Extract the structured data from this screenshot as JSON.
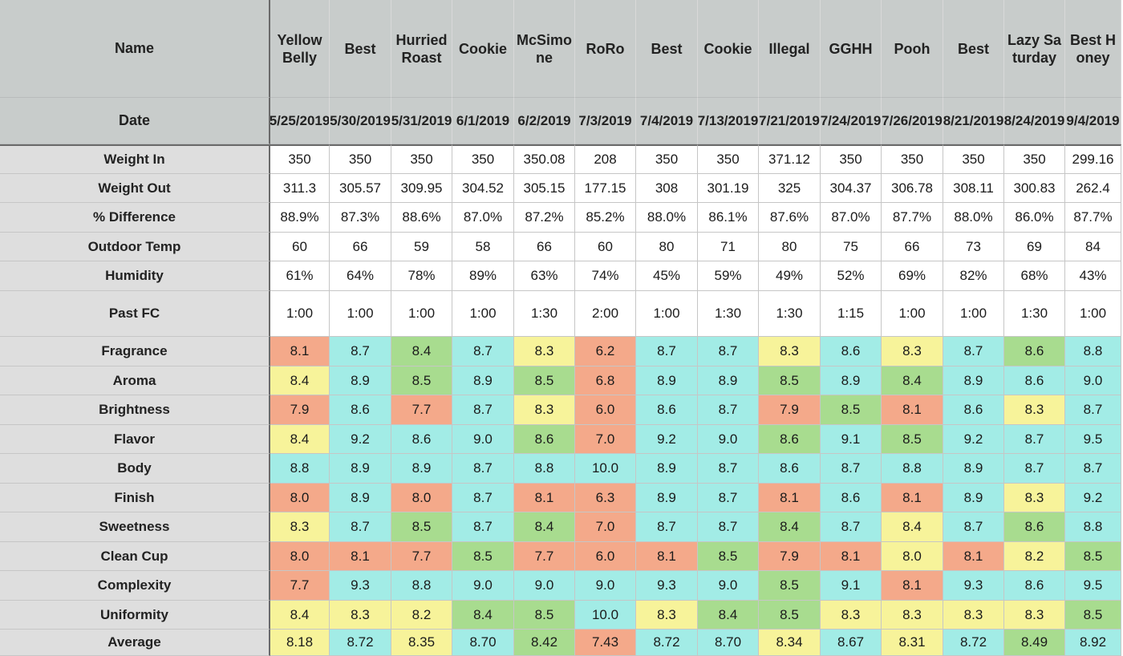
{
  "header": {
    "name_label": "Name",
    "date_label": "Date"
  },
  "columns": [
    {
      "name": "Yellow Belly",
      "date": "5/25/2019"
    },
    {
      "name": "Best",
      "date": "5/30/2019"
    },
    {
      "name": "Hurried Roast",
      "date": "5/31/2019"
    },
    {
      "name": "Cookie",
      "date": "6/1/2019"
    },
    {
      "name": "McSimone",
      "date": "6/2/2019"
    },
    {
      "name": "RoRo",
      "date": "7/3/2019"
    },
    {
      "name": "Best",
      "date": "7/4/2019"
    },
    {
      "name": "Cookie",
      "date": "7/13/2019"
    },
    {
      "name": "Illegal",
      "date": "7/21/2019"
    },
    {
      "name": "GGHH",
      "date": "7/24/2019"
    },
    {
      "name": "Pooh",
      "date": "7/26/2019"
    },
    {
      "name": "Best",
      "date": "8/21/2019"
    },
    {
      "name": "Lazy Saturday",
      "date": "8/24/2019"
    },
    {
      "name": "Best Honey",
      "date": "9/4/2019"
    }
  ],
  "rows": [
    {
      "label": "Weight In",
      "values": [
        "350",
        "350",
        "350",
        "350",
        "350.08",
        "208",
        "350",
        "350",
        "371.12",
        "350",
        "350",
        "350",
        "350",
        "299.16"
      ]
    },
    {
      "label": "Weight Out",
      "values": [
        "311.3",
        "305.57",
        "309.95",
        "304.52",
        "305.15",
        "177.15",
        "308",
        "301.19",
        "325",
        "304.37",
        "306.78",
        "308.11",
        "300.83",
        "262.4"
      ]
    },
    {
      "label": "% Difference",
      "values": [
        "88.9%",
        "87.3%",
        "88.6%",
        "87.0%",
        "87.2%",
        "85.2%",
        "88.0%",
        "86.1%",
        "87.6%",
        "87.0%",
        "87.7%",
        "88.0%",
        "86.0%",
        "87.7%"
      ]
    },
    {
      "label": "Outdoor Temp",
      "values": [
        "60",
        "66",
        "59",
        "58",
        "66",
        "60",
        "80",
        "71",
        "80",
        "75",
        "66",
        "73",
        "69",
        "84"
      ]
    },
    {
      "label": "Humidity",
      "values": [
        "61%",
        "64%",
        "78%",
        "89%",
        "63%",
        "74%",
        "45%",
        "59%",
        "49%",
        "52%",
        "69%",
        "82%",
        "68%",
        "43%"
      ]
    },
    {
      "label": "Past FC",
      "values": [
        "1:00",
        "1:00",
        "1:00",
        "1:00",
        "1:30",
        "2:00",
        "1:00",
        "1:30",
        "1:30",
        "1:15",
        "1:00",
        "1:00",
        "1:30",
        "1:00"
      ]
    },
    {
      "label": "Fragrance",
      "values": [
        "8.1",
        "8.7",
        "8.4",
        "8.7",
        "8.3",
        "6.2",
        "8.7",
        "8.7",
        "8.3",
        "8.6",
        "8.3",
        "8.7",
        "8.6",
        "8.8"
      ],
      "colors": [
        "red",
        "cyn",
        "grn",
        "cyn",
        "yel",
        "red",
        "cyn",
        "cyn",
        "yel",
        "cyn",
        "yel",
        "cyn",
        "grn",
        "cyn"
      ]
    },
    {
      "label": "Aroma",
      "values": [
        "8.4",
        "8.9",
        "8.5",
        "8.9",
        "8.5",
        "6.8",
        "8.9",
        "8.9",
        "8.5",
        "8.9",
        "8.4",
        "8.9",
        "8.6",
        "9.0"
      ],
      "colors": [
        "yel",
        "cyn",
        "grn",
        "cyn",
        "grn",
        "red",
        "cyn",
        "cyn",
        "grn",
        "cyn",
        "grn",
        "cyn",
        "cyn",
        "cyn"
      ]
    },
    {
      "label": "Brightness",
      "values": [
        "7.9",
        "8.6",
        "7.7",
        "8.7",
        "8.3",
        "6.0",
        "8.6",
        "8.7",
        "7.9",
        "8.5",
        "8.1",
        "8.6",
        "8.3",
        "8.7"
      ],
      "colors": [
        "red",
        "cyn",
        "red",
        "cyn",
        "yel",
        "red",
        "cyn",
        "cyn",
        "red",
        "grn",
        "red",
        "cyn",
        "yel",
        "cyn"
      ]
    },
    {
      "label": "Flavor",
      "values": [
        "8.4",
        "9.2",
        "8.6",
        "9.0",
        "8.6",
        "7.0",
        "9.2",
        "9.0",
        "8.6",
        "9.1",
        "8.5",
        "9.2",
        "8.7",
        "9.5"
      ],
      "colors": [
        "yel",
        "cyn",
        "cyn",
        "cyn",
        "grn",
        "red",
        "cyn",
        "cyn",
        "grn",
        "cyn",
        "grn",
        "cyn",
        "cyn",
        "cyn"
      ]
    },
    {
      "label": "Body",
      "values": [
        "8.8",
        "8.9",
        "8.9",
        "8.7",
        "8.8",
        "10.0",
        "8.9",
        "8.7",
        "8.6",
        "8.7",
        "8.8",
        "8.9",
        "8.7",
        "8.7"
      ],
      "colors": [
        "cyn",
        "cyn",
        "cyn",
        "cyn",
        "cyn",
        "cyn",
        "cyn",
        "cyn",
        "cyn",
        "cyn",
        "cyn",
        "cyn",
        "cyn",
        "cyn"
      ]
    },
    {
      "label": "Finish",
      "values": [
        "8.0",
        "8.9",
        "8.0",
        "8.7",
        "8.1",
        "6.3",
        "8.9",
        "8.7",
        "8.1",
        "8.6",
        "8.1",
        "8.9",
        "8.3",
        "9.2"
      ],
      "colors": [
        "red",
        "cyn",
        "red",
        "cyn",
        "red",
        "red",
        "cyn",
        "cyn",
        "red",
        "cyn",
        "red",
        "cyn",
        "yel",
        "cyn"
      ]
    },
    {
      "label": "Sweetness",
      "values": [
        "8.3",
        "8.7",
        "8.5",
        "8.7",
        "8.4",
        "7.0",
        "8.7",
        "8.7",
        "8.4",
        "8.7",
        "8.4",
        "8.7",
        "8.6",
        "8.8"
      ],
      "colors": [
        "yel",
        "cyn",
        "grn",
        "cyn",
        "grn",
        "red",
        "cyn",
        "cyn",
        "grn",
        "cyn",
        "yel",
        "cyn",
        "grn",
        "cyn"
      ]
    },
    {
      "label": "Clean Cup",
      "values": [
        "8.0",
        "8.1",
        "7.7",
        "8.5",
        "7.7",
        "6.0",
        "8.1",
        "8.5",
        "7.9",
        "8.1",
        "8.0",
        "8.1",
        "8.2",
        "8.5"
      ],
      "colors": [
        "red",
        "red",
        "red",
        "grn",
        "red",
        "red",
        "red",
        "grn",
        "red",
        "red",
        "yel",
        "red",
        "yel",
        "grn"
      ]
    },
    {
      "label": "Complexity",
      "values": [
        "7.7",
        "9.3",
        "8.8",
        "9.0",
        "9.0",
        "9.0",
        "9.3",
        "9.0",
        "8.5",
        "9.1",
        "8.1",
        "9.3",
        "8.6",
        "9.5"
      ],
      "colors": [
        "red",
        "cyn",
        "cyn",
        "cyn",
        "cyn",
        "cyn",
        "cyn",
        "cyn",
        "grn",
        "cyn",
        "red",
        "cyn",
        "cyn",
        "cyn"
      ]
    },
    {
      "label": "Uniformity",
      "values": [
        "8.4",
        "8.3",
        "8.2",
        "8.4",
        "8.5",
        "10.0",
        "8.3",
        "8.4",
        "8.5",
        "8.3",
        "8.3",
        "8.3",
        "8.3",
        "8.5"
      ],
      "colors": [
        "yel",
        "yel",
        "yel",
        "grn",
        "grn",
        "cyn",
        "yel",
        "grn",
        "grn",
        "yel",
        "yel",
        "yel",
        "yel",
        "grn"
      ]
    },
    {
      "label": "Average",
      "values": [
        "8.18",
        "8.72",
        "8.35",
        "8.70",
        "8.42",
        "7.43",
        "8.72",
        "8.70",
        "8.34",
        "8.67",
        "8.31",
        "8.72",
        "8.49",
        "8.92"
      ],
      "colors": [
        "yel",
        "cyn",
        "yel",
        "cyn",
        "grn",
        "red",
        "cyn",
        "cyn",
        "yel",
        "cyn",
        "yel",
        "cyn",
        "grn",
        "cyn"
      ]
    }
  ],
  "palette": {
    "red": "#f4a98a",
    "yel": "#f7f39a",
    "grn": "#a8dc8f",
    "cyn": "#a2ece6",
    "header_bg": "#c8cccb",
    "label_bg": "#dedede"
  }
}
